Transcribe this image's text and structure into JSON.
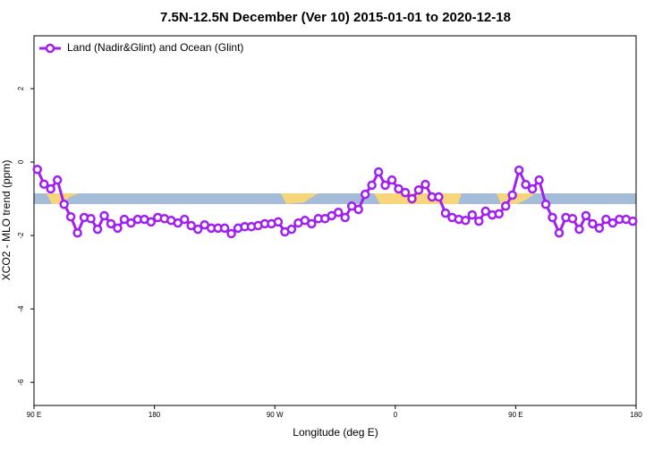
{
  "chart_data": {
    "type": "line",
    "title": "7.5N-12.5N December (Ver 10)   2015-01-01 to 2020-12-18",
    "x_label": "Longitude (deg E)",
    "y_label": "XCO2 - MLO trend (ppm)",
    "legend": "top-left",
    "x": [
      92.5,
      97.5,
      102.5,
      107.5,
      112.5,
      117.5,
      122.5,
      127.5,
      132.5,
      137.5,
      142.5,
      147.5,
      152.5,
      157.5,
      162.5,
      167.5,
      172.5,
      177.5,
      182.5,
      187.5,
      192.5,
      197.5,
      202.5,
      207.5,
      212.5,
      217.5,
      222.5,
      227.5,
      232.5,
      237.5,
      242.5,
      247.5,
      252.5,
      257.5,
      262.5,
      267.5,
      272.5,
      277.5,
      282.5,
      287.5,
      292.5,
      297.5,
      302.5,
      307.5,
      312.5,
      317.5,
      322.5,
      327.5,
      332.5,
      337.5,
      342.5,
      347.5,
      352.5,
      357.5,
      362.5,
      367.5,
      372.5,
      377.5,
      382.5,
      387.5,
      392.5,
      397.5,
      402.5,
      407.5,
      412.5,
      417.5,
      422.5,
      427.5,
      432.5,
      437.5,
      442.5,
      447.5,
      452.5,
      457.5,
      462.5,
      467.5,
      472.5,
      477.5,
      482.5,
      487.5,
      492.5,
      497.5,
      502.5,
      507.5,
      512.5,
      517.5,
      522.5,
      527.5,
      532.5,
      537.5
    ],
    "series": [
      {
        "name": "Land (Nadir&Glint) and Ocean (Glint)",
        "color": "#a020f0",
        "values": [
          -0.2,
          -0.6,
          -0.73,
          -0.49,
          -1.15,
          -1.49,
          -1.93,
          -1.51,
          -1.54,
          -1.83,
          -1.46,
          -1.68,
          -1.8,
          -1.56,
          -1.66,
          -1.56,
          -1.56,
          -1.63,
          -1.51,
          -1.54,
          -1.59,
          -1.66,
          -1.56,
          -1.73,
          -1.83,
          -1.71,
          -1.8,
          -1.8,
          -1.8,
          -1.95,
          -1.8,
          -1.76,
          -1.76,
          -1.73,
          -1.68,
          -1.68,
          -1.63,
          -1.9,
          -1.83,
          -1.66,
          -1.59,
          -1.68,
          -1.54,
          -1.54,
          -1.46,
          -1.37,
          -1.51,
          -1.2,
          -1.29,
          -0.88,
          -0.63,
          -0.27,
          -0.63,
          -0.49,
          -0.73,
          -0.83,
          -1.0,
          -0.76,
          -0.61,
          -0.95,
          -0.95,
          -1.39,
          -1.51,
          -1.56,
          -1.59,
          -1.44,
          -1.61,
          -1.34,
          -1.44,
          -1.41,
          -1.2,
          -0.9,
          -0.22,
          -0.61,
          -0.73,
          -0.49,
          -1.15,
          -1.51,
          -1.93,
          -1.51,
          -1.54,
          -1.83,
          -1.46,
          -1.68,
          -1.8,
          -1.56,
          -1.66,
          -1.56,
          -1.56,
          -1.61
        ]
      }
    ],
    "xlim": [
      90,
      540
    ],
    "xticks": [
      {
        "value": 90,
        "label": "90 E"
      },
      180,
      {
        "value": 270,
        "label": "90 W"
      },
      {
        "value": 360,
        "label": "0"
      },
      {
        "value": 450,
        "label": "90 E"
      },
      {
        "value": 540,
        "label": "180"
      }
    ],
    "ylim": [
      -6.63,
      3.44
    ],
    "yticks": [
      2,
      0,
      -2,
      -4,
      -6
    ]
  }
}
